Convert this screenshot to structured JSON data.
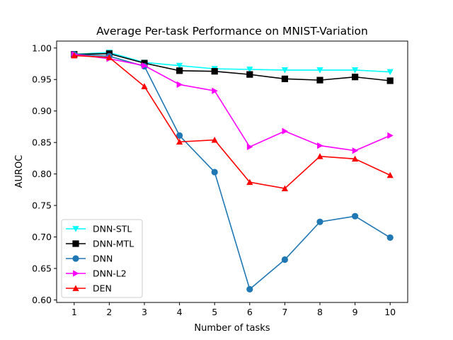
{
  "chart_data": {
    "type": "line",
    "title": "Average Per-task Performance on MNIST-Variation",
    "xlabel": "Number of tasks",
    "ylabel": "AUROC",
    "x": [
      1,
      2,
      3,
      4,
      5,
      6,
      7,
      8,
      9,
      10
    ],
    "xlim": [
      0.5,
      10.5
    ],
    "ylim": [
      0.596,
      1.011
    ],
    "yticks": [
      0.6,
      0.65,
      0.7,
      0.75,
      0.8,
      0.85,
      0.9,
      0.95,
      1.0
    ],
    "ytick_labels": [
      "0.60",
      "0.65",
      "0.70",
      "0.75",
      "0.80",
      "0.85",
      "0.90",
      "0.95",
      "1.00"
    ],
    "xticks": [
      1,
      2,
      3,
      4,
      5,
      6,
      7,
      8,
      9,
      10
    ],
    "xtick_labels": [
      "1",
      "2",
      "3",
      "4",
      "5",
      "6",
      "7",
      "8",
      "9",
      "10"
    ],
    "grid": false,
    "legend_position": "lower-left",
    "series": [
      {
        "name": "DNN-STL",
        "color": "#00ffff",
        "marker": "triangle-down",
        "values": [
          0.99,
          0.993,
          0.977,
          0.972,
          0.967,
          0.966,
          0.965,
          0.965,
          0.965,
          0.962
        ]
      },
      {
        "name": "DNN-MTL",
        "color": "#000000",
        "marker": "square",
        "values": [
          0.99,
          0.991,
          0.976,
          0.964,
          0.963,
          0.958,
          0.951,
          0.949,
          0.954,
          0.948
        ]
      },
      {
        "name": "DNN",
        "color": "#1f77b4",
        "marker": "circle",
        "values": [
          0.99,
          0.987,
          0.971,
          0.861,
          0.803,
          0.617,
          0.664,
          0.724,
          0.733,
          0.699
        ]
      },
      {
        "name": "DNN-L2",
        "color": "#ff00ff",
        "marker": "triangle-right",
        "values": [
          0.99,
          0.983,
          0.972,
          0.942,
          0.932,
          0.843,
          0.868,
          0.845,
          0.837,
          0.861
        ]
      },
      {
        "name": "DEN",
        "color": "#ff0000",
        "marker": "triangle-up",
        "values": [
          0.988,
          0.985,
          0.939,
          0.851,
          0.854,
          0.787,
          0.777,
          0.828,
          0.824,
          0.798
        ]
      }
    ]
  }
}
